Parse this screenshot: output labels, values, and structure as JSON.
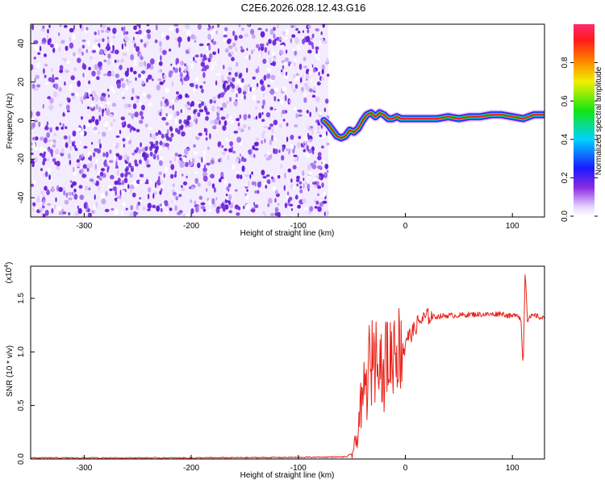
{
  "title": "C2E6.2026.028.12.43.G16",
  "chart_data": [
    {
      "type": "heatmap",
      "xlabel": "Height of straight line (km)",
      "ylabel": "Frequency (Hz)",
      "xlim": [
        -350,
        130
      ],
      "ylim": [
        -50,
        50
      ],
      "xticks": [
        -300,
        -200,
        -100,
        0,
        100
      ],
      "xtick_labels": [
        "-300",
        "-200",
        "-100",
        "0",
        "100"
      ],
      "yticks": [
        -40,
        -20,
        0,
        20,
        40
      ],
      "ytick_labels": [
        "-40",
        "-20",
        "0",
        "20",
        "40"
      ],
      "noise_region_km": [
        -350,
        -72
      ],
      "signal_track": {
        "x": [
          -76,
          -72,
          -68,
          -64,
          -60,
          -56,
          -52,
          -48,
          -44,
          -40,
          -36,
          -32,
          -28,
          -24,
          -20,
          -16,
          -12,
          -8,
          -4,
          0,
          10,
          20,
          30,
          40,
          50,
          60,
          70,
          80,
          90,
          100,
          110,
          120,
          130
        ],
        "y": [
          0,
          -2,
          -5,
          -8,
          -9,
          -8,
          -5,
          -6,
          -4,
          0,
          3,
          4,
          2,
          4,
          3,
          1,
          1,
          2,
          1,
          1,
          1,
          1,
          1,
          2,
          1,
          2,
          2,
          3,
          3,
          2,
          1,
          3,
          3
        ]
      },
      "colorbar": {
        "label": "Normalized spectral amplitude",
        "range": [
          0,
          1
        ],
        "ticks": [
          0.0,
          0.2,
          0.4,
          0.6,
          0.8
        ],
        "tick_labels": [
          "0.0",
          "0.2",
          "0.4",
          "0.6",
          "0.8"
        ]
      },
      "grid": false
    },
    {
      "type": "line",
      "xlabel": "Height of straight line (km)",
      "ylabel": "SNR (10 * v/v)",
      "scale_label": "(x10",
      "scale_exponent": "4",
      "xlim": [
        -350,
        130
      ],
      "ylim": [
        0,
        1.8
      ],
      "xticks": [
        -300,
        -200,
        -100,
        0,
        100
      ],
      "xtick_labels": [
        "-300",
        "-200",
        "-100",
        "0",
        "100"
      ],
      "yticks": [
        0,
        0.5,
        1.0,
        1.5
      ],
      "ytick_labels": [
        "0.0",
        "0.5",
        "1.0",
        "1.5"
      ],
      "series": [
        {
          "color": "#e8231a",
          "x": [
            -350,
            -300,
            -200,
            -100,
            -55,
            -50,
            -46,
            -44,
            -42,
            -40,
            -38,
            -36,
            -34,
            -32,
            -30,
            -28,
            -26,
            -24,
            -22,
            -20,
            -18,
            -16,
            -14,
            -12,
            -10,
            -8,
            -6,
            -4,
            -2,
            0,
            4,
            8,
            12,
            16,
            20,
            25,
            30,
            40,
            50,
            60,
            70,
            80,
            90,
            95,
            100,
            104,
            108,
            110,
            112,
            114,
            118,
            122,
            126,
            130
          ],
          "y": [
            0.01,
            0.01,
            0.01,
            0.015,
            0.02,
            0.05,
            0.15,
            0.3,
            0.5,
            0.45,
            0.75,
            0.6,
            0.95,
            0.7,
            1.2,
            0.8,
            1.3,
            0.95,
            0.9,
            0.6,
            1.1,
            0.85,
            1.0,
            0.9,
            1.15,
            1.0,
            1.05,
            1.0,
            1.1,
            1.12,
            1.15,
            1.2,
            1.28,
            1.3,
            1.33,
            1.33,
            1.33,
            1.34,
            1.34,
            1.35,
            1.35,
            1.35,
            1.36,
            1.34,
            1.33,
            1.36,
            1.3,
            0.85,
            1.78,
            1.3,
            1.33,
            1.34,
            1.32,
            1.31
          ]
        }
      ],
      "grid": false
    }
  ]
}
